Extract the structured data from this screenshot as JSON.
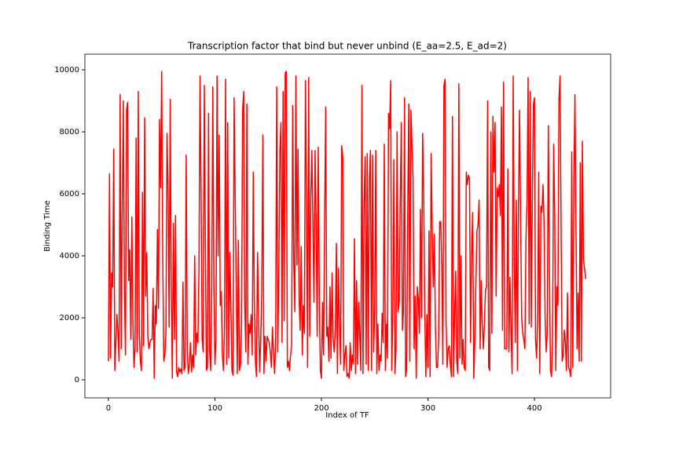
{
  "chart_data": {
    "type": "line",
    "title": "Transcription factor that bind but never unbind (E_aa=2.5, E_ad=2)",
    "x_label": "Index of TF",
    "y_label": "Binding Time",
    "color": "#ff0000",
    "xlim": [
      -22.1,
      471.5
    ],
    "ylim": [
      -582,
      10506
    ],
    "xticks": [
      0,
      100,
      200,
      300,
      400
    ],
    "yticks": [
      0,
      2000,
      4000,
      6000,
      8000,
      10000
    ],
    "values": [
      600,
      6650,
      700,
      3450,
      3000,
      7450,
      300,
      1200,
      2100,
      1500,
      600,
      9200,
      1000,
      5500,
      9000,
      3000,
      800,
      8700,
      8950,
      3200,
      4200,
      1300,
      5250,
      1900,
      400,
      1000,
      7800,
      900,
      9300,
      1500,
      600,
      300,
      6050,
      1100,
      8450,
      2700,
      4100,
      1400,
      1000,
      1200,
      1300,
      1300,
      2950,
      50,
      2400,
      1800,
      4850,
      2300,
      8400,
      6200,
      9950,
      4000,
      600,
      800,
      1500,
      7950,
      6200,
      1700,
      9050,
      3000,
      50,
      5050,
      1300,
      5300,
      250,
      100,
      400,
      250,
      350,
      200,
      3150,
      300,
      400,
      7250,
      1000,
      200,
      500,
      1200,
      250,
      800,
      400,
      4000,
      800,
      1500,
      1200,
      3500,
      9800,
      6000,
      1300,
      900,
      9500,
      4500,
      300,
      400,
      8600,
      1000,
      300,
      2900,
      9450,
      3100,
      500,
      1300,
      9800,
      4000,
      7900,
      2400,
      2850,
      800,
      300,
      1700,
      9700,
      500,
      8300,
      700,
      4100,
      2300,
      300,
      150,
      9100,
      6000,
      3000,
      200,
      4500,
      300,
      500,
      1800,
      8700,
      9300,
      2400,
      900,
      8900,
      500,
      1800,
      1500,
      2100,
      800,
      6700,
      2500,
      600,
      100,
      4100,
      2000,
      250,
      1300,
      2900,
      7900,
      200,
      1400,
      600,
      1400,
      1300,
      1200,
      900,
      400,
      1700,
      900,
      200,
      1200,
      9450,
      900,
      3500,
      7400,
      8300,
      1200,
      9300,
      1900,
      9900,
      9950,
      400,
      600,
      300,
      800,
      1100,
      8850,
      3800,
      2200,
      9800,
      3700,
      7450,
      2700,
      1600,
      4300,
      800,
      2400,
      1500,
      9650,
      6000,
      400,
      9750,
      1400,
      5900,
      7400,
      5000,
      2500,
      7400,
      5200,
      1400,
      7500,
      2700,
      300,
      50,
      2500,
      800,
      5200,
      8800,
      1400,
      1700,
      600,
      3000,
      700,
      3450,
      1300,
      900,
      1600,
      4400,
      200,
      3600,
      1700,
      500,
      7550,
      7200,
      300,
      800,
      1100,
      100,
      200,
      50,
      1200,
      300,
      800,
      500,
      4550,
      200,
      3200,
      500,
      2500,
      1400,
      300,
      9500,
      200,
      5700,
      7200,
      500,
      7300,
      300,
      6500,
      7400,
      300,
      7250,
      900,
      2200,
      7400,
      200,
      1800,
      300,
      800,
      600,
      2150,
      1200,
      7600,
      300,
      1800,
      700,
      8600,
      8100,
      9650,
      300,
      2000,
      7100,
      200,
      1000,
      8000,
      2200,
      2500,
      5800,
      8300,
      1600,
      2200,
      9100,
      100,
      300,
      5400,
      8900,
      600,
      8700,
      7600,
      6500,
      1000,
      2700,
      50,
      3000,
      2600,
      1500,
      5500,
      2000,
      7950,
      6000,
      2200,
      100,
      2100,
      400,
      4800,
      100,
      7300,
      4800,
      3000,
      4700,
      1700,
      400,
      400,
      1300,
      5100,
      5100,
      3700,
      500,
      9500,
      9700,
      1900,
      400,
      1000,
      1100,
      500,
      100,
      8500,
      100,
      2000,
      3500,
      600,
      200,
      9550,
      700,
      4000,
      500,
      1300,
      400,
      300,
      6700,
      6300,
      6600,
      6500,
      1200,
      4000,
      5400,
      50,
      1200,
      3100,
      4800,
      5000,
      5800,
      1000,
      3200,
      1800,
      1000,
      1800,
      2900,
      3000,
      9000,
      400,
      300,
      8000,
      1500,
      8500,
      6700,
      8300,
      2700,
      6200,
      5900,
      6300,
      5300,
      8800,
      1600,
      9600,
      1000,
      1000,
      1000,
      6800,
      900,
      3300,
      1600,
      200,
      9800,
      4000,
      1200,
      5800,
      300,
      5600,
      8700,
      5100,
      2000,
      1500,
      1300,
      1000,
      4500,
      5800,
      9750,
      1800,
      9300,
      1700,
      5900,
      8900,
      9100,
      1300,
      700,
      2000,
      6700,
      200,
      5600,
      5400,
      6300,
      5100,
      2000,
      900,
      1500,
      8200,
      3700,
      300,
      100,
      1200,
      7600,
      5400,
      300,
      3000,
      2400,
      9050,
      9800,
      4900,
      600,
      800,
      1600,
      1200,
      300,
      2800,
      400,
      300,
      100,
      7350,
      400,
      6300,
      9200,
      4900,
      1000,
      2800,
      600,
      7000,
      600,
      7700,
      3900,
      3600,
      3250
    ]
  }
}
